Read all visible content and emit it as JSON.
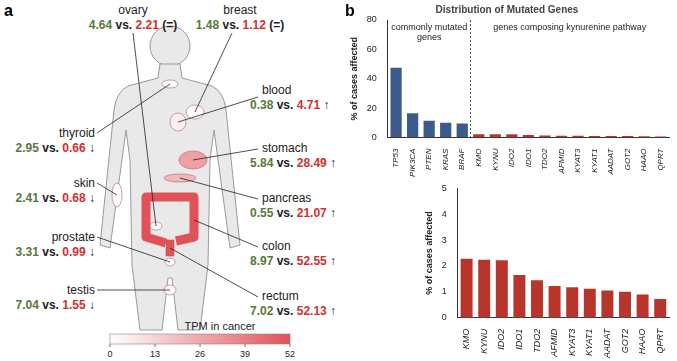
{
  "panel_labels": [
    "a",
    "b"
  ],
  "body_map": {
    "separator": "vs.",
    "organs": [
      {
        "name": "ovary",
        "normal": 4.64,
        "cancer": 2.21,
        "change": "(=)"
      },
      {
        "name": "breast",
        "normal": 1.48,
        "cancer": 1.12,
        "change": "(=)"
      },
      {
        "name": "blood",
        "normal": 0.38,
        "cancer": 4.71,
        "change": "↑"
      },
      {
        "name": "thyroid",
        "normal": 2.95,
        "cancer": 0.66,
        "change": "↓"
      },
      {
        "name": "stomach",
        "normal": 5.84,
        "cancer": 28.49,
        "change": "↑"
      },
      {
        "name": "skin",
        "normal": 2.41,
        "cancer": 0.68,
        "change": "↓"
      },
      {
        "name": "pancreas",
        "normal": 0.55,
        "cancer": 21.07,
        "change": "↑"
      },
      {
        "name": "prostate",
        "normal": 3.31,
        "cancer": 0.99,
        "change": "↓"
      },
      {
        "name": "colon",
        "normal": 8.97,
        "cancer": 52.55,
        "change": "↑"
      },
      {
        "name": "testis",
        "normal": 7.04,
        "cancer": 1.55,
        "change": "↓"
      },
      {
        "name": "rectum",
        "normal": 7.02,
        "cancer": 52.13,
        "change": "↑"
      }
    ],
    "colorbar": {
      "title": "TPM in cancer",
      "range": [
        0,
        52
      ],
      "ticks": [
        0,
        13,
        26,
        39,
        52
      ]
    }
  },
  "chart_data": [
    {
      "type": "bar",
      "title": "Distribution of Mutated Genes",
      "categories": [
        "TP53",
        "PIK3CA",
        "PTEN",
        "KRAS",
        "BRAF",
        "KMO",
        "KYNU",
        "IDO2",
        "IDO1",
        "TDO2",
        "AFMID",
        "KYAT3",
        "KYAT1",
        "AADAT",
        "GOT2",
        "HAAO",
        "QPRT"
      ],
      "values": [
        47.5,
        16.5,
        11.5,
        10,
        9.5,
        2.28,
        2.24,
        2.22,
        1.65,
        1.45,
        1.22,
        1.18,
        1.12,
        1.05,
        1.0,
        0.9,
        0.72
      ],
      "colors": [
        "#3d5a8c",
        "#3d5a8c",
        "#3d5a8c",
        "#3d5a8c",
        "#3d5a8c",
        "#b8352c",
        "#b8352c",
        "#b8352c",
        "#b8352c",
        "#b8352c",
        "#b8352c",
        "#b8352c",
        "#b8352c",
        "#b8352c",
        "#b8352c",
        "#b8352c",
        "#b8352c"
      ],
      "ylabel": "% of cases affected",
      "ylim": [
        0,
        80
      ],
      "yticks": [
        0,
        20,
        40,
        60,
        80
      ],
      "grid": false,
      "groups": [
        {
          "label": "commonly mutated genes",
          "categories": [
            "TP53",
            "PIK3CA",
            "PTEN",
            "KRAS",
            "BRAF"
          ]
        },
        {
          "label": "genes composing kynurenine pathway",
          "categories": [
            "KMO",
            "KYNU",
            "IDO2",
            "IDO1",
            "TDO2",
            "AFMID",
            "KYAT3",
            "KYAT1",
            "AADAT",
            "GOT2",
            "HAAO",
            "QPRT"
          ]
        }
      ]
    },
    {
      "type": "bar",
      "categories": [
        "KMO",
        "KYNU",
        "IDO2",
        "IDO1",
        "TDO2",
        "AFMID",
        "KYAT3",
        "KYAT1",
        "AADAT",
        "GOT2",
        "HAAO",
        "QPRT"
      ],
      "values": [
        2.28,
        2.24,
        2.22,
        1.65,
        1.45,
        1.22,
        1.18,
        1.12,
        1.05,
        1.0,
        0.9,
        0.72
      ],
      "color": "#b8352c",
      "ylabel": "% of cases affected",
      "ylim": [
        0,
        5
      ],
      "yticks": [
        0,
        1,
        2,
        3,
        4,
        5
      ],
      "grid": false
    }
  ]
}
